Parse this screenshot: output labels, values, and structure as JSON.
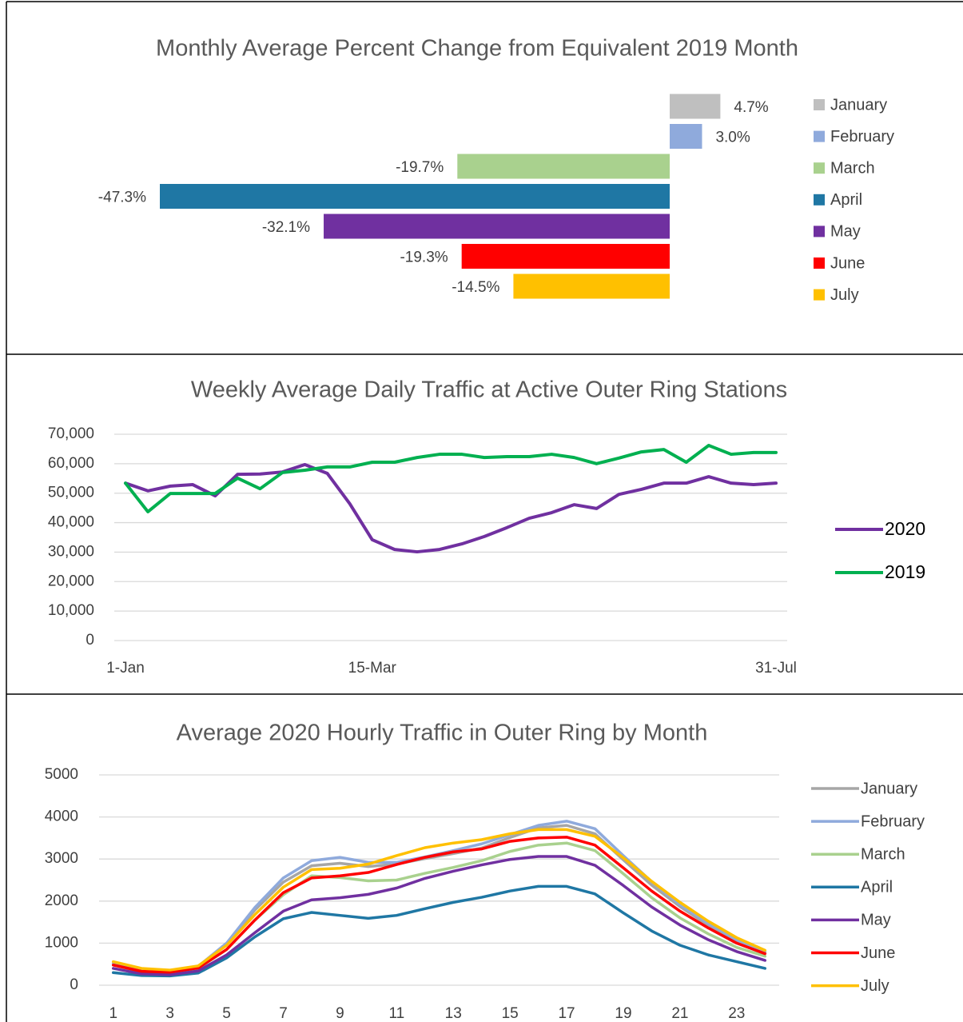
{
  "chart_data": [
    {
      "type": "bar",
      "orientation": "horizontal",
      "title": "Monthly Average Percent Change from Equivalent 2019 Month",
      "categories": [
        "January",
        "February",
        "March",
        "April",
        "May",
        "June",
        "July"
      ],
      "values": [
        4.7,
        3.0,
        -19.7,
        -47.3,
        -32.1,
        -19.3,
        -14.5
      ],
      "value_labels": [
        "4.7%",
        "3.0%",
        "-19.7%",
        "-47.3%",
        "-32.1%",
        "-19.3%",
        "-14.5%"
      ],
      "colors": [
        "#bfbfbf",
        "#8faadc",
        "#a9d18e",
        "#1f77a4",
        "#7030a0",
        "#ff0000",
        "#ffc000"
      ],
      "legend": "right"
    },
    {
      "type": "line",
      "title": "Weekly Average Daily Traffic at Active Outer Ring Stations",
      "categories": [
        "1-Jan",
        null,
        null,
        null,
        null,
        null,
        null,
        null,
        null,
        null,
        null,
        "15-Mar",
        null,
        null,
        null,
        null,
        null,
        null,
        null,
        null,
        null,
        null,
        null,
        null,
        null,
        null,
        null,
        null,
        null,
        "31-Jul"
      ],
      "series": [
        {
          "name": "2020",
          "color": "#7030a0",
          "values": [
            53400,
            50800,
            52400,
            52900,
            49100,
            56400,
            56500,
            57200,
            59700,
            56700,
            46400,
            34200,
            30900,
            30100,
            30900,
            32800,
            35300,
            38300,
            41500,
            43400,
            46100,
            44800,
            49600,
            51300,
            53400,
            53400,
            55600,
            53400,
            52900,
            53400
          ]
        },
        {
          "name": "2019",
          "color": "#00b050",
          "values": [
            53400,
            43700,
            49900,
            49900,
            49900,
            55100,
            51500,
            57000,
            57800,
            58900,
            58900,
            60500,
            60500,
            62100,
            63200,
            63200,
            62100,
            62400,
            62400,
            63200,
            62100,
            60000,
            61900,
            64000,
            64800,
            60500,
            66200,
            63200,
            63800,
            63800
          ]
        }
      ],
      "ylim": [
        0,
        70000
      ],
      "yticks": [
        0,
        {
          "value": 10000,
          "label": "10,000"
        },
        {
          "value": 20000,
          "label": "20,000"
        },
        {
          "value": 30000,
          "label": "30,000"
        },
        {
          "value": 40000,
          "label": "40,000"
        },
        {
          "value": 50000,
          "label": "50,000"
        },
        {
          "value": 60000,
          "label": "60,000"
        },
        {
          "value": 70000,
          "label": "70,000"
        }
      ],
      "grid": true,
      "legend": "right"
    },
    {
      "type": "line",
      "title": "Average 2020 Hourly Traffic in Outer Ring by Month",
      "x": [
        1,
        2,
        3,
        4,
        5,
        6,
        7,
        8,
        9,
        10,
        11,
        12,
        13,
        14,
        15,
        16,
        17,
        18,
        19,
        20,
        21,
        22,
        23,
        24
      ],
      "xlim": [
        0.5,
        24.5
      ],
      "xticks": [
        1,
        3,
        5,
        7,
        9,
        11,
        13,
        15,
        17,
        19,
        21,
        23
      ],
      "series": [
        {
          "name": "January",
          "color": "#a6a6a6",
          "values": [
            520,
            360,
            330,
            440,
            980,
            1790,
            2450,
            2840,
            2900,
            2820,
            2880,
            3010,
            3130,
            3260,
            3510,
            3740,
            3800,
            3600,
            2980,
            2380,
            1870,
            1420,
            1050,
            780
          ]
        },
        {
          "name": "February",
          "color": "#8faadc",
          "values": [
            520,
            360,
            340,
            450,
            1000,
            1850,
            2550,
            2960,
            3040,
            2920,
            2920,
            3050,
            3200,
            3360,
            3580,
            3800,
            3900,
            3720,
            3080,
            2460,
            1920,
            1470,
            1080,
            800
          ]
        },
        {
          "name": "March",
          "color": "#a9d18e",
          "values": [
            480,
            330,
            300,
            400,
            850,
            1550,
            2150,
            2600,
            2560,
            2480,
            2500,
            2660,
            2800,
            2960,
            3180,
            3330,
            3380,
            3200,
            2650,
            2080,
            1600,
            1220,
            900,
            690
          ]
        },
        {
          "name": "April",
          "color": "#1f77a4",
          "values": [
            300,
            230,
            220,
            290,
            650,
            1150,
            1580,
            1730,
            1660,
            1590,
            1660,
            1820,
            1970,
            2090,
            2240,
            2350,
            2350,
            2170,
            1720,
            1290,
            950,
            720,
            560,
            400
          ]
        },
        {
          "name": "May",
          "color": "#7030a0",
          "values": [
            400,
            270,
            250,
            340,
            720,
            1250,
            1760,
            2030,
            2080,
            2160,
            2310,
            2540,
            2710,
            2860,
            2990,
            3060,
            3060,
            2850,
            2370,
            1860,
            1430,
            1080,
            800,
            590
          ]
        },
        {
          "name": "June",
          "color": "#ff0000",
          "values": [
            480,
            330,
            310,
            410,
            850,
            1550,
            2200,
            2550,
            2600,
            2680,
            2870,
            3040,
            3170,
            3240,
            3420,
            3500,
            3520,
            3330,
            2790,
            2240,
            1760,
            1360,
            1000,
            750
          ]
        },
        {
          "name": "July",
          "color": "#ffc000",
          "values": [
            560,
            400,
            360,
            460,
            950,
            1680,
            2330,
            2750,
            2780,
            2880,
            3080,
            3270,
            3380,
            3460,
            3600,
            3700,
            3700,
            3540,
            3030,
            2470,
            1970,
            1520,
            1130,
            830
          ]
        }
      ],
      "ylim": [
        0,
        5000
      ],
      "yticks": [
        0,
        1000,
        2000,
        3000,
        4000,
        5000
      ],
      "grid": true,
      "legend": "right"
    }
  ]
}
